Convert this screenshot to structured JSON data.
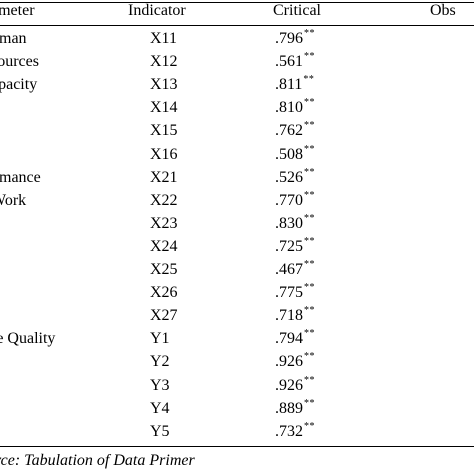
{
  "table": {
    "headers": {
      "parameter": "ameter",
      "indicator": "Indicator",
      "critical": "Critical",
      "observed": "Obs"
    },
    "parameters": [
      {
        "label": "uman",
        "row": 0
      },
      {
        "label": "sources",
        "row": 1
      },
      {
        "label": "apacity",
        "row": 2
      },
      {
        "label": "omance",
        "row": 6
      },
      {
        "label": "Work",
        "row": 7
      },
      {
        "label": "fe Quality",
        "row": 13
      }
    ],
    "rows": [
      {
        "indicator": "X11",
        "critical": ".796",
        "sig": "**"
      },
      {
        "indicator": "X12",
        "critical": ".561",
        "sig": "**"
      },
      {
        "indicator": "X13",
        "critical": ".811",
        "sig": "**"
      },
      {
        "indicator": "X14",
        "critical": ".810",
        "sig": "**"
      },
      {
        "indicator": "X15",
        "critical": ".762",
        "sig": "**"
      },
      {
        "indicator": "X16",
        "critical": ".508",
        "sig": "**"
      },
      {
        "indicator": "X21",
        "critical": ".526",
        "sig": "**"
      },
      {
        "indicator": "X22",
        "critical": ".770",
        "sig": "**"
      },
      {
        "indicator": "X23",
        "critical": ".830",
        "sig": "**"
      },
      {
        "indicator": "X24",
        "critical": ".725",
        "sig": "**"
      },
      {
        "indicator": "X25",
        "critical": ".467",
        "sig": "**"
      },
      {
        "indicator": "X26",
        "critical": ".775",
        "sig": "**"
      },
      {
        "indicator": "X27",
        "critical": ".718",
        "sig": "**"
      },
      {
        "indicator": "Y1",
        "critical": ".794",
        "sig": "**"
      },
      {
        "indicator": "Y2",
        "critical": ".926",
        "sig": "**"
      },
      {
        "indicator": "Y3",
        "critical": ".926",
        "sig": "**"
      },
      {
        "indicator": "Y4",
        "critical": ".889",
        "sig": "**"
      },
      {
        "indicator": "Y5",
        "critical": ".732",
        "sig": "**"
      }
    ]
  },
  "source": "urce: Tabulation of Data Primer"
}
